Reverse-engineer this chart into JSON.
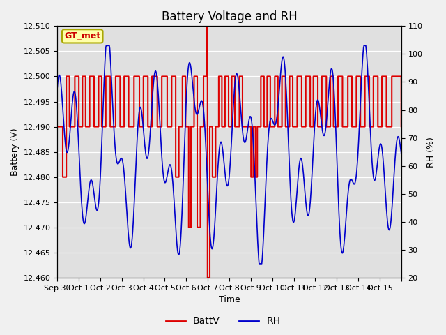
{
  "title": "Battery Voltage and RH",
  "xlabel": "Time",
  "ylabel_left": "Battery (V)",
  "ylabel_right": "RH (%)",
  "annotation_text": "GT_met",
  "ylim_left": [
    12.46,
    12.51
  ],
  "ylim_right": [
    20,
    110
  ],
  "yticks_left": [
    12.46,
    12.465,
    12.47,
    12.475,
    12.48,
    12.485,
    12.49,
    12.495,
    12.5,
    12.505,
    12.51
  ],
  "yticks_right": [
    20,
    30,
    40,
    50,
    60,
    70,
    80,
    90,
    100,
    110
  ],
  "xtick_positions": [
    0,
    1,
    2,
    3,
    4,
    5,
    6,
    7,
    8,
    9,
    10,
    11,
    12,
    13,
    14,
    15,
    16
  ],
  "xtick_labels": [
    "Sep 30",
    "Oct 1",
    "Oct 2",
    "Oct 3",
    "Oct 4",
    "Oct 5",
    "Oct 6",
    "Oct 7",
    "Oct 8",
    "Oct 9",
    "Oct 10",
    "Oct 11",
    "Oct 12",
    "Oct 13",
    "Oct 14",
    "Oct 15",
    ""
  ],
  "grid_color": "#ffffff",
  "bg_color": "#e0e0e0",
  "fig_color": "#f0f0f0",
  "battv_color": "#dd0000",
  "rh_color": "#0000cc",
  "legend_battv": "BattV",
  "legend_rh": "RH",
  "title_fontsize": 12,
  "axis_label_fontsize": 9,
  "tick_fontsize": 8
}
